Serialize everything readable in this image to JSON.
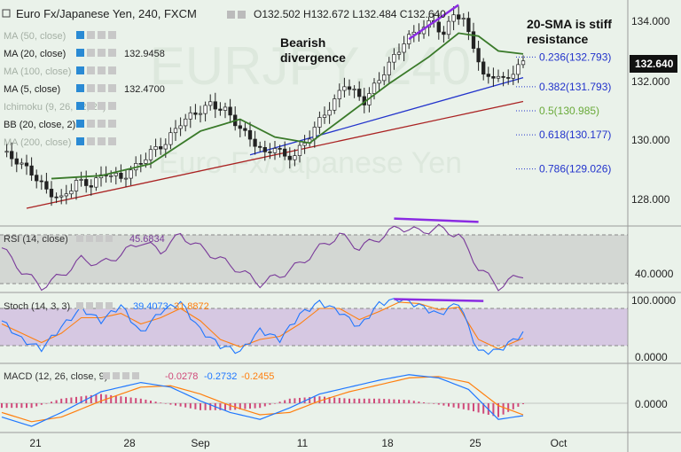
{
  "header": {
    "symbol": "Euro Fx/Japanese Yen, 240, FXCM",
    "ohlc": "O132.502  H132.672  L132.484  C132.640"
  },
  "indicators": [
    {
      "label": "MA (50, close)",
      "value": ""
    },
    {
      "label": "MA (20, close)",
      "value": "132.9458"
    },
    {
      "label": "MA (100, close)",
      "value": ""
    },
    {
      "label": "MA (5, close)",
      "value": "132.4700"
    },
    {
      "label": "Ichimoku (9, 26, 52, 26)",
      "value": ""
    },
    {
      "label": "BB (20, close, 2)",
      "value": ""
    },
    {
      "label": "MA (200, close)",
      "value": ""
    }
  ],
  "annotations": {
    "divergence": [
      "Bearish",
      "divergence"
    ],
    "resistance": [
      "20-SMA is stiff",
      "resistance"
    ]
  },
  "fib_levels": [
    {
      "label": "0.236(132.793)",
      "price": 132.793
    },
    {
      "label": "0.382(131.793)",
      "price": 131.793
    },
    {
      "label": "0.5(130.985)",
      "price": 130.985
    },
    {
      "label": "0.618(130.177)",
      "price": 130.177
    },
    {
      "label": "0.786(129.026)",
      "price": 129.026
    }
  ],
  "watermark": [
    "EURJPY, 240",
    "Euro Fx/Japanese Yen"
  ],
  "price_axis": {
    "ticks": [
      "134.000",
      "132.000",
      "130.000",
      "128.000"
    ],
    "last_price": "132.640"
  },
  "panes": {
    "rsi": {
      "label": "RSI (14, close)",
      "value": "45.6834",
      "tick": "40.0000"
    },
    "stoch": {
      "label": "Stoch (14, 3, 3)",
      "k": "39.4073",
      "d": "31.8872",
      "ticks": [
        "100.0000",
        "0.0000"
      ]
    },
    "macd": {
      "label": "MACD (12, 26, close, 9)",
      "hist": "-0.0278",
      "macd": "-0.2732",
      "signal": "-0.2455",
      "tick": "0.0000"
    }
  },
  "time_axis": [
    "21",
    "28",
    "Sep",
    "11",
    "18",
    "25",
    "Oct"
  ],
  "colors": {
    "background": "#eaf2ea",
    "up_candle": "#ffffff",
    "down_candle": "#222222",
    "sma20": "#3a7a2a",
    "support_line": "#2233cc",
    "trend_line": "#aa2222",
    "divergence": "#8a2be2",
    "rsi_line": "#7a3a9a",
    "stoch_k": "#1f77ff",
    "stoch_d": "#ff7f0e",
    "macd_line": "#1f77ff",
    "signal_line": "#ff7f0e",
    "histogram": "#d04a7a",
    "fib": "#2233cc",
    "fib_mid": "#6aaa3a"
  },
  "chart_data": {
    "type": "candlestick",
    "y_range": [
      127.4,
      134.6
    ],
    "x_labels": [
      "21",
      "28",
      "Sep",
      "11",
      "18",
      "25",
      "Oct"
    ],
    "price_series": [
      [
        0,
        129.6
      ],
      [
        3,
        129.3
      ],
      [
        6,
        128.9
      ],
      [
        9,
        128.3
      ],
      [
        12,
        128.0
      ],
      [
        15,
        128.6
      ],
      [
        18,
        128.5
      ],
      [
        21,
        128.9
      ],
      [
        24,
        128.7
      ],
      [
        27,
        129.1
      ],
      [
        30,
        129.6
      ],
      [
        33,
        129.9
      ],
      [
        36,
        130.6
      ],
      [
        39,
        130.9
      ],
      [
        42,
        131.2
      ],
      [
        45,
        131.0
      ],
      [
        47,
        130.6
      ],
      [
        49,
        130.2
      ],
      [
        51,
        129.9
      ],
      [
        53,
        129.5
      ],
      [
        55,
        129.8
      ],
      [
        57,
        129.4
      ],
      [
        59,
        129.5
      ],
      [
        61,
        129.9
      ],
      [
        63,
        130.4
      ],
      [
        65,
        130.9
      ],
      [
        67,
        131.3
      ],
      [
        69,
        131.9
      ],
      [
        71,
        131.6
      ],
      [
        73,
        131.3
      ],
      [
        75,
        131.8
      ],
      [
        77,
        132.3
      ],
      [
        79,
        132.8
      ],
      [
        81,
        133.3
      ],
      [
        83,
        133.6
      ],
      [
        85,
        133.8
      ],
      [
        87,
        134.0
      ],
      [
        89,
        133.5
      ],
      [
        91,
        134.3
      ],
      [
        93,
        134.0
      ],
      [
        95,
        133.2
      ],
      [
        97,
        132.1
      ],
      [
        99,
        132.2
      ],
      [
        101,
        132.0
      ],
      [
        103,
        132.3
      ],
      [
        105,
        132.6
      ]
    ],
    "sma20": [
      [
        10,
        128.7
      ],
      [
        20,
        128.8
      ],
      [
        30,
        129.2
      ],
      [
        40,
        130.3
      ],
      [
        48,
        130.7
      ],
      [
        55,
        130.1
      ],
      [
        62,
        129.9
      ],
      [
        70,
        130.9
      ],
      [
        78,
        131.9
      ],
      [
        86,
        132.8
      ],
      [
        92,
        133.6
      ],
      [
        96,
        133.5
      ],
      [
        100,
        133.0
      ],
      [
        105,
        132.9
      ]
    ],
    "rsi": [
      [
        0,
        62
      ],
      [
        4,
        48
      ],
      [
        8,
        38
      ],
      [
        12,
        45
      ],
      [
        16,
        55
      ],
      [
        20,
        52
      ],
      [
        24,
        58
      ],
      [
        28,
        66
      ],
      [
        32,
        60
      ],
      [
        36,
        70
      ],
      [
        40,
        62
      ],
      [
        44,
        55
      ],
      [
        48,
        48
      ],
      [
        52,
        40
      ],
      [
        56,
        45
      ],
      [
        60,
        52
      ],
      [
        64,
        62
      ],
      [
        68,
        70
      ],
      [
        72,
        62
      ],
      [
        76,
        68
      ],
      [
        80,
        75
      ],
      [
        84,
        72
      ],
      [
        88,
        74
      ],
      [
        92,
        70
      ],
      [
        96,
        50
      ],
      [
        100,
        38
      ],
      [
        105,
        46
      ]
    ],
    "stoch_k": [
      [
        0,
        60
      ],
      [
        4,
        30
      ],
      [
        8,
        15
      ],
      [
        12,
        50
      ],
      [
        16,
        80
      ],
      [
        20,
        60
      ],
      [
        24,
        85
      ],
      [
        28,
        40
      ],
      [
        32,
        75
      ],
      [
        36,
        90
      ],
      [
        40,
        45
      ],
      [
        44,
        20
      ],
      [
        48,
        10
      ],
      [
        52,
        45
      ],
      [
        56,
        30
      ],
      [
        60,
        70
      ],
      [
        64,
        90
      ],
      [
        68,
        75
      ],
      [
        72,
        50
      ],
      [
        76,
        88
      ],
      [
        80,
        95
      ],
      [
        84,
        85
      ],
      [
        88,
        70
      ],
      [
        92,
        90
      ],
      [
        96,
        10
      ],
      [
        100,
        12
      ],
      [
        105,
        40
      ]
    ],
    "stoch_d": [
      [
        0,
        55
      ],
      [
        4,
        40
      ],
      [
        8,
        25
      ],
      [
        12,
        40
      ],
      [
        16,
        65
      ],
      [
        20,
        65
      ],
      [
        24,
        72
      ],
      [
        28,
        55
      ],
      [
        32,
        65
      ],
      [
        36,
        80
      ],
      [
        40,
        60
      ],
      [
        44,
        30
      ],
      [
        48,
        18
      ],
      [
        52,
        30
      ],
      [
        56,
        35
      ],
      [
        60,
        55
      ],
      [
        64,
        80
      ],
      [
        68,
        80
      ],
      [
        72,
        62
      ],
      [
        76,
        75
      ],
      [
        80,
        90
      ],
      [
        84,
        88
      ],
      [
        88,
        78
      ],
      [
        92,
        82
      ],
      [
        96,
        30
      ],
      [
        100,
        15
      ],
      [
        105,
        32
      ]
    ],
    "macd": [
      [
        0,
        -0.3
      ],
      [
        6,
        -0.5
      ],
      [
        12,
        -0.2
      ],
      [
        20,
        0.25
      ],
      [
        28,
        0.45
      ],
      [
        34,
        0.35
      ],
      [
        40,
        0.05
      ],
      [
        46,
        -0.2
      ],
      [
        52,
        -0.35
      ],
      [
        58,
        -0.1
      ],
      [
        64,
        0.2
      ],
      [
        70,
        0.35
      ],
      [
        76,
        0.5
      ],
      [
        82,
        0.62
      ],
      [
        88,
        0.55
      ],
      [
        94,
        0.3
      ],
      [
        100,
        -0.35
      ],
      [
        105,
        -0.27
      ]
    ],
    "signal": [
      [
        0,
        -0.2
      ],
      [
        6,
        -0.4
      ],
      [
        12,
        -0.3
      ],
      [
        20,
        0.05
      ],
      [
        28,
        0.35
      ],
      [
        34,
        0.38
      ],
      [
        40,
        0.2
      ],
      [
        46,
        -0.05
      ],
      [
        52,
        -0.25
      ],
      [
        58,
        -0.2
      ],
      [
        64,
        0.05
      ],
      [
        70,
        0.25
      ],
      [
        76,
        0.4
      ],
      [
        82,
        0.55
      ],
      [
        88,
        0.58
      ],
      [
        94,
        0.45
      ],
      [
        100,
        -0.05
      ],
      [
        105,
        -0.25
      ]
    ],
    "macd_range": [
      -0.8,
      0.9
    ],
    "divergence_lines": {
      "price": [
        [
          82,
          133.4
        ],
        [
          92,
          134.55
        ]
      ],
      "rsi": [
        [
          79,
          80
        ],
        [
          96,
          78
        ]
      ],
      "stoch": [
        [
          79,
          95
        ],
        [
          97,
          92
        ]
      ]
    },
    "support_line": [
      [
        50,
        129.5
      ],
      [
        105,
        132.1
      ]
    ],
    "trend_line": [
      [
        5,
        127.7
      ],
      [
        105,
        131.3
      ]
    ]
  }
}
